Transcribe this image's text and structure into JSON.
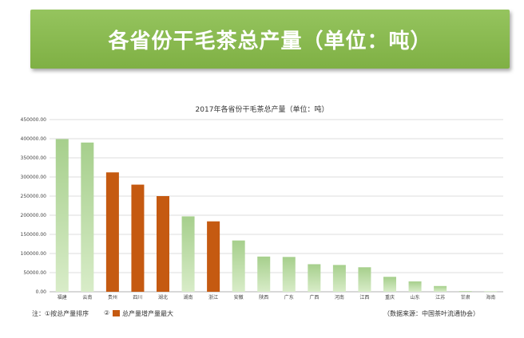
{
  "banner": {
    "title": "各省份干毛茶总产量（单位：吨）"
  },
  "chart_data": {
    "type": "bar",
    "title": "2017年各省份干毛茶总产量（单位：吨）",
    "xlabel": "",
    "ylabel": "",
    "ylim": [
      0,
      450000
    ],
    "yticks": [
      "0.00",
      "50000.00",
      "100000.00",
      "150000.00",
      "200000.00",
      "250000.00",
      "300000.00",
      "350000.00",
      "400000.00",
      "450000.00"
    ],
    "categories": [
      "福建",
      "云南",
      "贵州",
      "四川",
      "湖北",
      "湖南",
      "浙江",
      "安徽",
      "陕西",
      "广东",
      "广西",
      "河南",
      "江西",
      "重庆",
      "山东",
      "江苏",
      "甘肃",
      "海南"
    ],
    "values": [
      399000,
      390000,
      312000,
      280000,
      250000,
      197000,
      184000,
      134000,
      92000,
      91000,
      72000,
      70000,
      64000,
      39000,
      27000,
      15000,
      2000,
      1000
    ],
    "highlight": [
      false,
      false,
      true,
      true,
      true,
      false,
      true,
      false,
      false,
      false,
      false,
      false,
      false,
      false,
      false,
      false,
      false,
      false
    ],
    "colors": {
      "total_rank": "#a6cf8c",
      "growth": "#c55a11"
    },
    "grid": true
  },
  "notes": {
    "note1": "注：①按总产量排序",
    "note2": "②",
    "note2_text": "总产量增产量最大",
    "source": "（数据来源：中国茶叶流通协会）"
  }
}
